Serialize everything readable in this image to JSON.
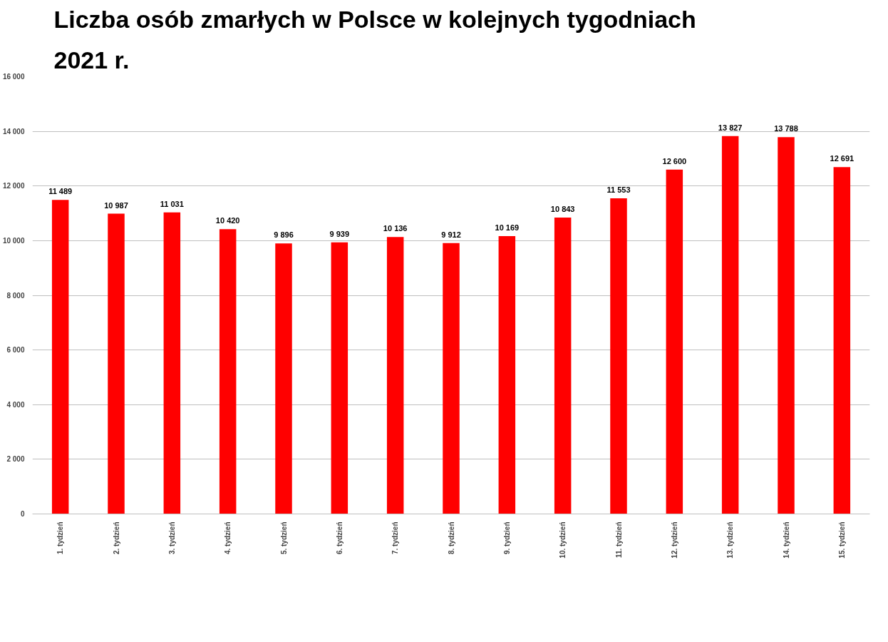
{
  "chart_data": {
    "type": "bar",
    "title": "Liczba osób zmarłych w Polsce w kolejnych tygodniach 2021 r.",
    "categories": [
      "1. tydzień",
      "2. tydzień",
      "3. tydzień",
      "4. tydzień",
      "5. tydzień",
      "6. tydzień",
      "7. tydzień",
      "8. tydzień",
      "9. tydzień",
      "10. tydzień",
      "11. tydzień",
      "12. tydzień",
      "13. tydzień",
      "14. tydzień",
      "15. tydzień"
    ],
    "values": [
      11489,
      10987,
      11031,
      10420,
      9896,
      9939,
      10136,
      9912,
      10169,
      10843,
      11553,
      12600,
      13827,
      13788,
      12691
    ],
    "value_labels": [
      "11 489",
      "10 987",
      "11 031",
      "10 420",
      "9 896",
      "9 939",
      "10 136",
      "9 912",
      "10 169",
      "10 843",
      "11 553",
      "12 600",
      "13 827",
      "13 788",
      "12 691"
    ],
    "color": "#ff0000",
    "ylim": [
      0,
      16000
    ],
    "yticks": [
      {
        "value": 0,
        "label": "0"
      },
      {
        "value": 2000,
        "label": "2 000"
      },
      {
        "value": 4000,
        "label": "4 000"
      },
      {
        "value": 6000,
        "label": "6 000"
      },
      {
        "value": 8000,
        "label": "8 000"
      },
      {
        "value": 10000,
        "label": "10 000"
      },
      {
        "value": 12000,
        "label": "12 000"
      },
      {
        "value": 14000,
        "label": "14 000"
      },
      {
        "value": 16000,
        "label": "16 000"
      }
    ],
    "grid": "y"
  }
}
